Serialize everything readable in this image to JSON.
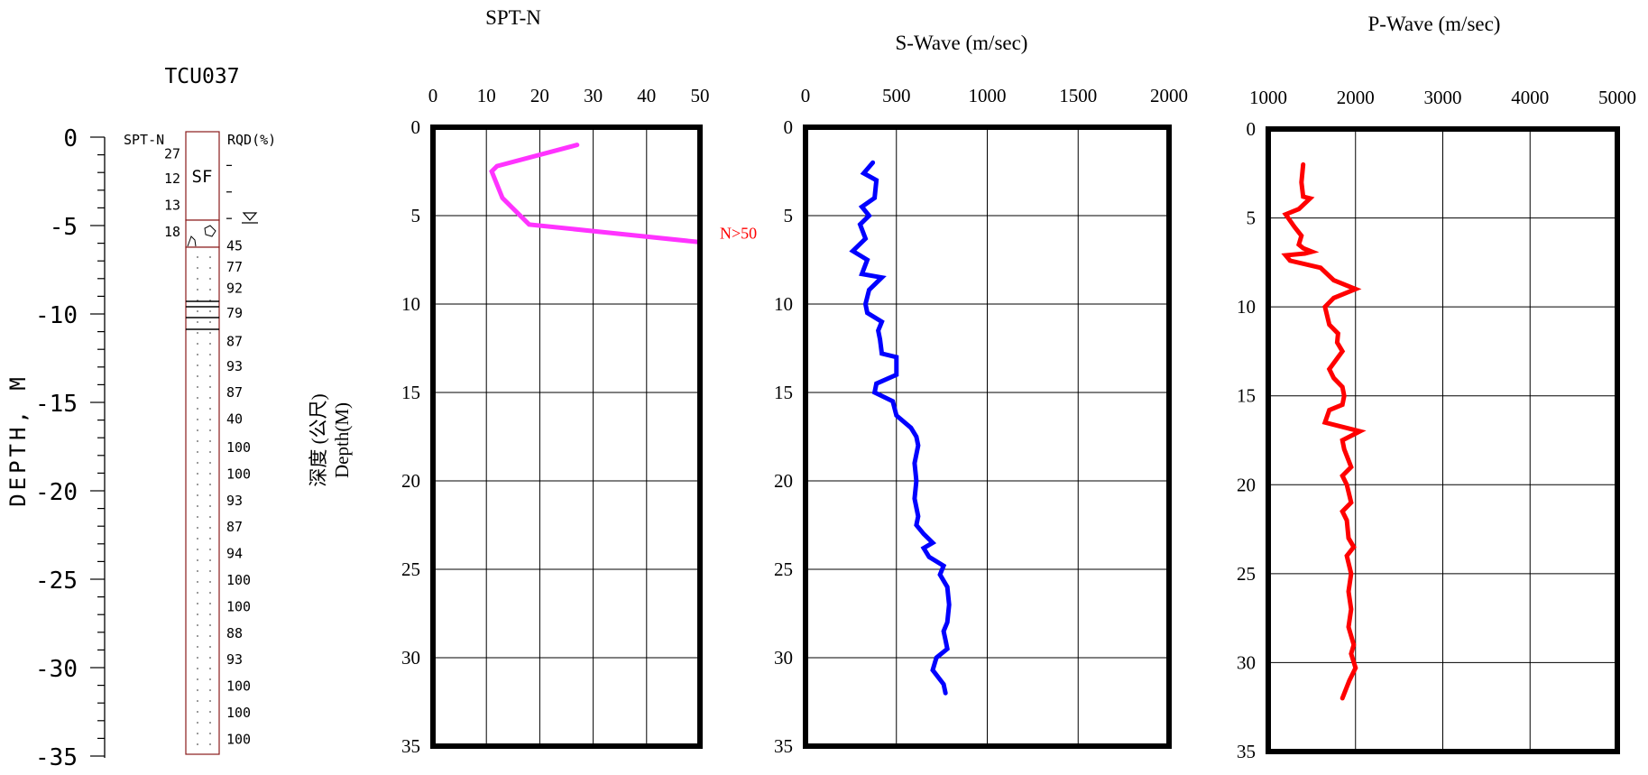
{
  "borehole": {
    "name": "TCU037",
    "depth_axis_label": "DEPTH, M",
    "depth_ticks": [
      "0",
      "-5",
      "-10",
      "-15",
      "-20",
      "-25",
      "-30",
      "-35"
    ],
    "spt_label": "SPT-N",
    "rqd_label": "RQD(%)",
    "soil_label": "SF",
    "spt_values": [
      {
        "depth": 0.9,
        "text": "27"
      },
      {
        "depth": 2.3,
        "text": "12"
      },
      {
        "depth": 3.8,
        "text": "13"
      },
      {
        "depth": 5.3,
        "text": "18"
      }
    ],
    "rqd_dashes_depth": [
      1.6,
      3.1,
      4.6
    ],
    "rqd_values": [
      {
        "depth": 6.1,
        "text": "45"
      },
      {
        "depth": 7.3,
        "text": "77"
      },
      {
        "depth": 8.5,
        "text": "92"
      },
      {
        "depth": 9.9,
        "text": "79"
      },
      {
        "depth": 11.5,
        "text": "87"
      },
      {
        "depth": 12.9,
        "text": "93"
      },
      {
        "depth": 14.4,
        "text": "87"
      },
      {
        "depth": 15.9,
        "text": "40"
      },
      {
        "depth": 17.5,
        "text": "100"
      },
      {
        "depth": 19.0,
        "text": "100"
      },
      {
        "depth": 20.5,
        "text": "93"
      },
      {
        "depth": 22.0,
        "text": "87"
      },
      {
        "depth": 23.5,
        "text": "94"
      },
      {
        "depth": 25.0,
        "text": "100"
      },
      {
        "depth": 26.5,
        "text": "100"
      },
      {
        "depth": 28.0,
        "text": "88"
      },
      {
        "depth": 29.5,
        "text": "93"
      },
      {
        "depth": 31.0,
        "text": "100"
      },
      {
        "depth": 32.5,
        "text": "100"
      },
      {
        "depth": 34.0,
        "text": "100"
      }
    ]
  },
  "depth_axis_title_zh": "深度 (公尺)",
  "depth_axis_title_en": "Depth(M)",
  "chart_data": [
    {
      "type": "line",
      "title": "SPT-N",
      "xlim": [
        0,
        50
      ],
      "ylim": [
        35,
        0
      ],
      "x_ticks": [
        "0",
        "10",
        "20",
        "30",
        "40",
        "50"
      ],
      "y_ticks": [
        "0",
        "5",
        "10",
        "15",
        "20",
        "25",
        "30",
        "35"
      ],
      "color": "#ff33ff",
      "annotation": "N>50",
      "annotation_color": "#ff0000",
      "series": [
        {
          "x": [
            27,
            12,
            11,
            13,
            18,
            50
          ],
          "y": [
            1.0,
            2.2,
            2.5,
            4.0,
            5.5,
            6.5
          ]
        }
      ]
    },
    {
      "type": "line",
      "title": "S-Wave (m/sec)",
      "xlim": [
        0,
        2000
      ],
      "ylim": [
        35,
        0
      ],
      "x_ticks": [
        "0",
        "500",
        "1000",
        "1500",
        "2000"
      ],
      "y_ticks": [
        "0",
        "5",
        "10",
        "15",
        "20",
        "25",
        "30",
        "35"
      ],
      "color": "#0000ff",
      "series": [
        {
          "x": [
            370,
            320,
            390,
            380,
            310,
            350,
            300,
            330,
            260,
            340,
            310,
            420,
            350,
            330,
            340,
            420,
            400,
            410,
            420,
            500,
            500,
            390,
            380,
            480,
            500,
            580,
            610,
            620,
            600,
            610,
            600,
            620,
            610,
            650,
            700,
            650,
            680,
            760,
            740,
            780,
            790,
            780,
            760,
            770,
            780,
            720,
            700,
            760,
            770
          ],
          "y": [
            2.0,
            2.6,
            3.0,
            4.0,
            4.5,
            5.0,
            5.5,
            6.3,
            7.0,
            7.5,
            8.3,
            8.5,
            9.2,
            10.0,
            10.5,
            11.0,
            11.5,
            12.0,
            12.8,
            13.0,
            14.0,
            14.5,
            15.0,
            15.5,
            16.3,
            17.0,
            17.5,
            18.0,
            19.0,
            20.0,
            21.0,
            22.0,
            22.5,
            23.0,
            23.5,
            23.8,
            24.3,
            24.8,
            25.3,
            26.0,
            27.0,
            28.0,
            28.5,
            29.0,
            29.5,
            30.0,
            30.7,
            31.5,
            32.0
          ]
        }
      ]
    },
    {
      "type": "line",
      "title": "P-Wave (m/sec)",
      "xlim": [
        1000,
        5000
      ],
      "ylim": [
        35,
        0
      ],
      "x_ticks": [
        "1000",
        "2000",
        "3000",
        "4000",
        "5000"
      ],
      "y_ticks": [
        "0",
        "5",
        "10",
        "15",
        "20",
        "25",
        "30",
        "35"
      ],
      "color": "#ff0000",
      "series": [
        {
          "x": [
            1400,
            1380,
            1400,
            1480,
            1350,
            1200,
            1300,
            1380,
            1350,
            1400,
            1500,
            1420,
            1200,
            1250,
            1600,
            1750,
            2000,
            1750,
            1650,
            1700,
            1800,
            1790,
            1850,
            1700,
            1750,
            1850,
            1870,
            1850,
            1700,
            1650,
            2050,
            1850,
            1870,
            1950,
            1850,
            1900,
            1950,
            1850,
            1900,
            1920,
            1980,
            1900,
            1950,
            1920,
            1950,
            1920,
            1980,
            1950,
            2000,
            1930,
            1850
          ],
          "y": [
            2.0,
            3.0,
            3.8,
            3.9,
            4.5,
            4.8,
            5.5,
            6.0,
            6.5,
            6.7,
            6.9,
            7.0,
            7.1,
            7.4,
            7.8,
            8.5,
            9.0,
            9.5,
            10.0,
            11.0,
            11.5,
            12.0,
            12.5,
            13.5,
            14.0,
            14.5,
            15.0,
            15.5,
            15.8,
            16.5,
            17.0,
            17.5,
            18.0,
            19.0,
            19.5,
            20.0,
            21.0,
            21.5,
            22.0,
            23.0,
            23.5,
            24.0,
            25.0,
            26.0,
            27.0,
            28.0,
            29.0,
            29.5,
            30.3,
            31.0,
            32.0
          ]
        }
      ]
    }
  ]
}
